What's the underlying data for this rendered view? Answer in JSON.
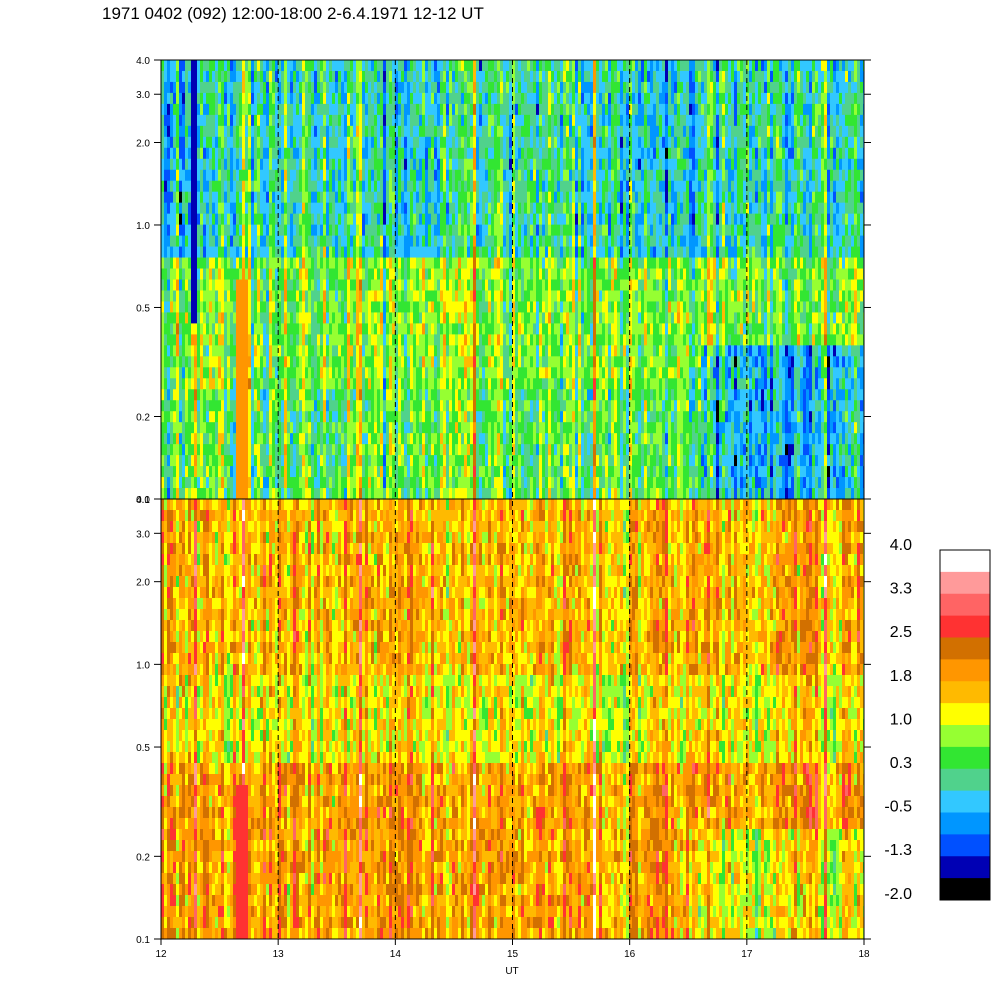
{
  "title": "1971 0402 (092) 12:00-18:00 2-6.4.1971 12-12 UT",
  "chart_data": {
    "type": "heatmap",
    "title": "1971 0402 (092) 12:00-18:00 2-6.4.1971 12-12 UT",
    "xlabel": "UT",
    "x_range": [
      12,
      18
    ],
    "x_ticks": [
      "12",
      "13",
      "14",
      "15",
      "16",
      "17",
      "18"
    ],
    "y_scale": "log",
    "y_range": [
      0.1,
      4.0
    ],
    "panels": [
      {
        "y_ticks": [
          "0.1",
          "0.2",
          "0.5",
          "1.0",
          "2.0",
          "3.0",
          "4.0"
        ],
        "dominant_levels": "green and cyan (about -0.5 to 1.0), yellow patches near 0.3-0.7"
      },
      {
        "y_ticks": [
          "0.1",
          "0.2",
          "0.5",
          "1.0",
          "2.0",
          "3.0",
          "4.0"
        ],
        "dominant_levels": "orange and yellow (about 1.0 to 2.5), red near UT 12.7 at low frequency"
      }
    ],
    "dashed_lines_at": [
      13,
      14,
      15,
      16,
      17
    ],
    "colorbar": {
      "labels": [
        "4.0",
        "3.3",
        "2.5",
        "1.8",
        "1.0",
        "0.3",
        "-0.5",
        "-1.3",
        "-2.0"
      ],
      "colors": [
        "#ffffff",
        "#ff9a9a",
        "#ff6464",
        "#ff3232",
        "#d27000",
        "#ff9600",
        "#ffba00",
        "#ffff00",
        "#96ff32",
        "#32e632",
        "#50d28c",
        "#32c8ff",
        "#0096ff",
        "#0050ff",
        "#0000b4",
        "#000000"
      ]
    }
  }
}
